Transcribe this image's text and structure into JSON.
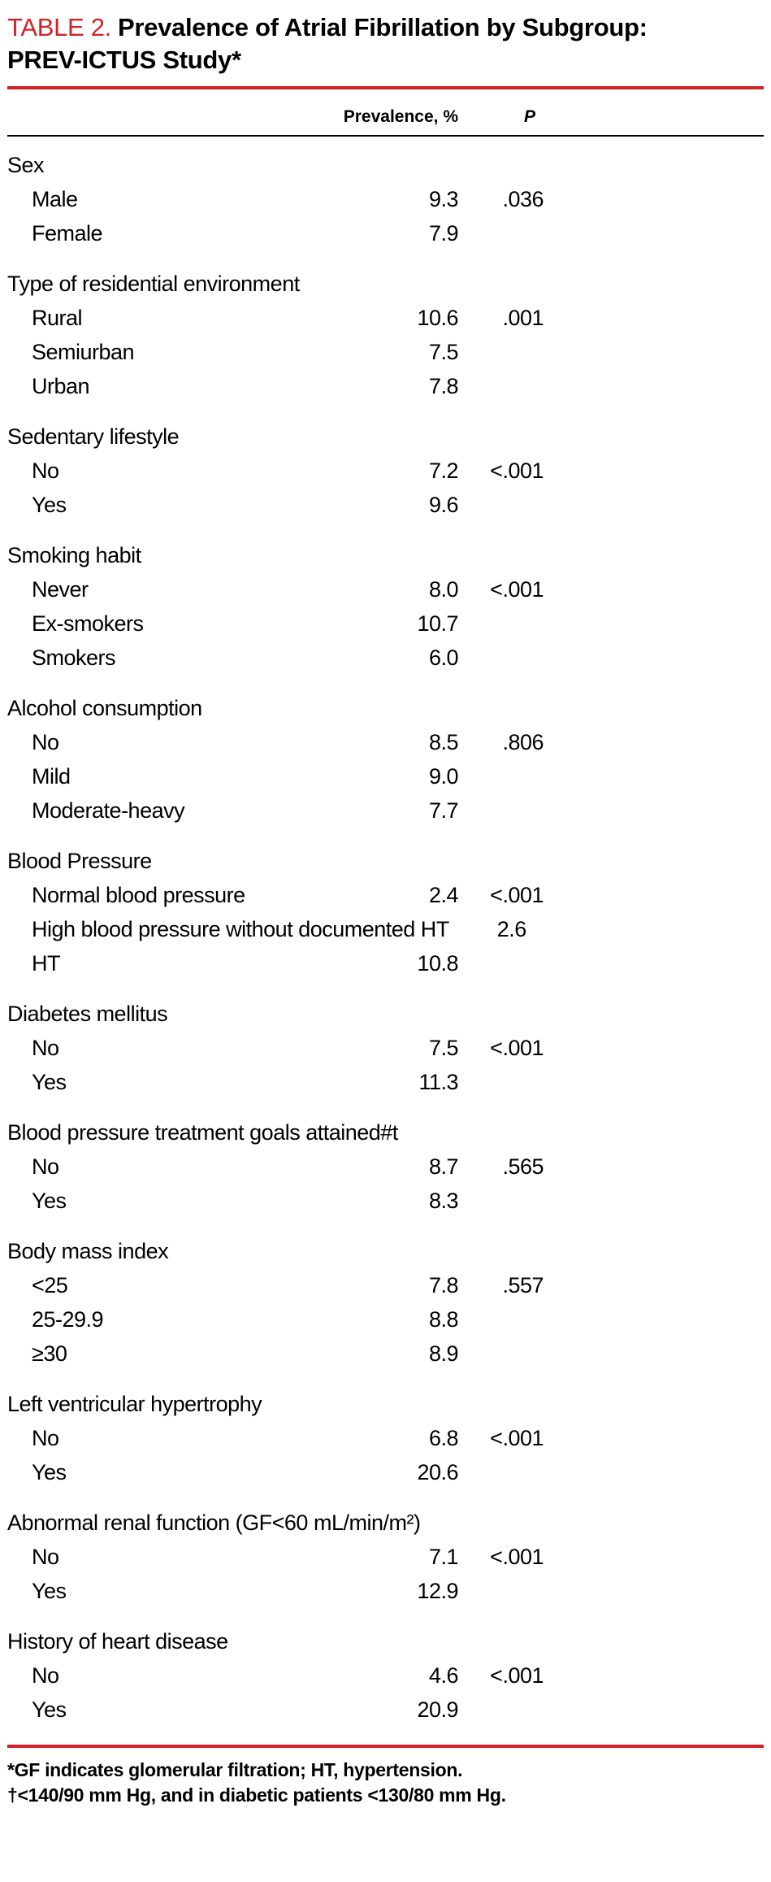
{
  "colors": {
    "accent_red": "#d42127"
  },
  "title": {
    "tag": "TABLE 2.",
    "text": "Prevalence of Atrial Fibrillation by Subgroup: PREV-ICTUS Study*"
  },
  "columns": {
    "prevalence": "Prevalence, %",
    "p": "P"
  },
  "table": {
    "sections": [
      {
        "label": "Sex",
        "rows": [
          {
            "label": "Male",
            "prevalence": "9.3",
            "p": ".036"
          },
          {
            "label": "Female",
            "prevalence": "7.9",
            "p": ""
          }
        ]
      },
      {
        "label": "Type of residential environment",
        "rows": [
          {
            "label": "Rural",
            "prevalence": "10.6",
            "p": ".001"
          },
          {
            "label": "Semiurban",
            "prevalence": "7.5",
            "p": ""
          },
          {
            "label": "Urban",
            "prevalence": "7.8",
            "p": ""
          }
        ]
      },
      {
        "label": "Sedentary lifestyle",
        "rows": [
          {
            "label": "No",
            "prevalence": "7.2",
            "p": "<.001"
          },
          {
            "label": "Yes",
            "prevalence": "9.6",
            "p": ""
          }
        ]
      },
      {
        "label": "Smoking habit",
        "rows": [
          {
            "label": "Never",
            "prevalence": "8.0",
            "p": "<.001"
          },
          {
            "label": "Ex-smokers",
            "prevalence": "10.7",
            "p": ""
          },
          {
            "label": "Smokers",
            "prevalence": "6.0",
            "p": ""
          }
        ]
      },
      {
        "label": "Alcohol consumption",
        "rows": [
          {
            "label": "No",
            "prevalence": "8.5",
            "p": ".806"
          },
          {
            "label": "Mild",
            "prevalence": "9.0",
            "p": ""
          },
          {
            "label": "Moderate-heavy",
            "prevalence": "7.7",
            "p": ""
          }
        ]
      },
      {
        "label": "Blood Pressure",
        "rows": [
          {
            "label": "Normal blood pressure",
            "prevalence": "2.4",
            "p": "<.001"
          },
          {
            "label": "High blood pressure without documented HT",
            "prevalence": "2.6",
            "p": ""
          },
          {
            "label": "HT",
            "prevalence": "10.8",
            "p": ""
          }
        ]
      },
      {
        "label": "Diabetes mellitus",
        "rows": [
          {
            "label": "No",
            "prevalence": "7.5",
            "p": "<.001"
          },
          {
            "label": "Yes",
            "prevalence": "11.3",
            "p": ""
          }
        ]
      },
      {
        "label": "Blood pressure treatment goals attained#t",
        "rows": [
          {
            "label": "No",
            "prevalence": "8.7",
            "p": ".565"
          },
          {
            "label": "Yes",
            "prevalence": "8.3",
            "p": ""
          }
        ]
      },
      {
        "label": "Body mass index",
        "rows": [
          {
            "label": "<25",
            "prevalence": "7.8",
            "p": ".557"
          },
          {
            "label": "25-29.9",
            "prevalence": "8.8",
            "p": ""
          },
          {
            "label": "≥30",
            "prevalence": "8.9",
            "p": ""
          }
        ]
      },
      {
        "label": "Left ventricular hypertrophy",
        "rows": [
          {
            "label": "No",
            "prevalence": "6.8",
            "p": "<.001"
          },
          {
            "label": "Yes",
            "prevalence": "20.6",
            "p": ""
          }
        ]
      },
      {
        "label": "Abnormal renal function (GF<60 mL/min/m²)",
        "rows": [
          {
            "label": "No",
            "prevalence": "7.1",
            "p": "<.001"
          },
          {
            "label": "Yes",
            "prevalence": "12.9",
            "p": ""
          }
        ]
      },
      {
        "label": "History of heart disease",
        "rows": [
          {
            "label": "No",
            "prevalence": "4.6",
            "p": "<.001"
          },
          {
            "label": "Yes",
            "prevalence": "20.9",
            "p": ""
          }
        ]
      }
    ]
  },
  "footnotes": [
    "*GF indicates glomerular filtration; HT, hypertension.",
    "†<140/90 mm Hg, and in diabetic patients <130/80 mm Hg."
  ]
}
